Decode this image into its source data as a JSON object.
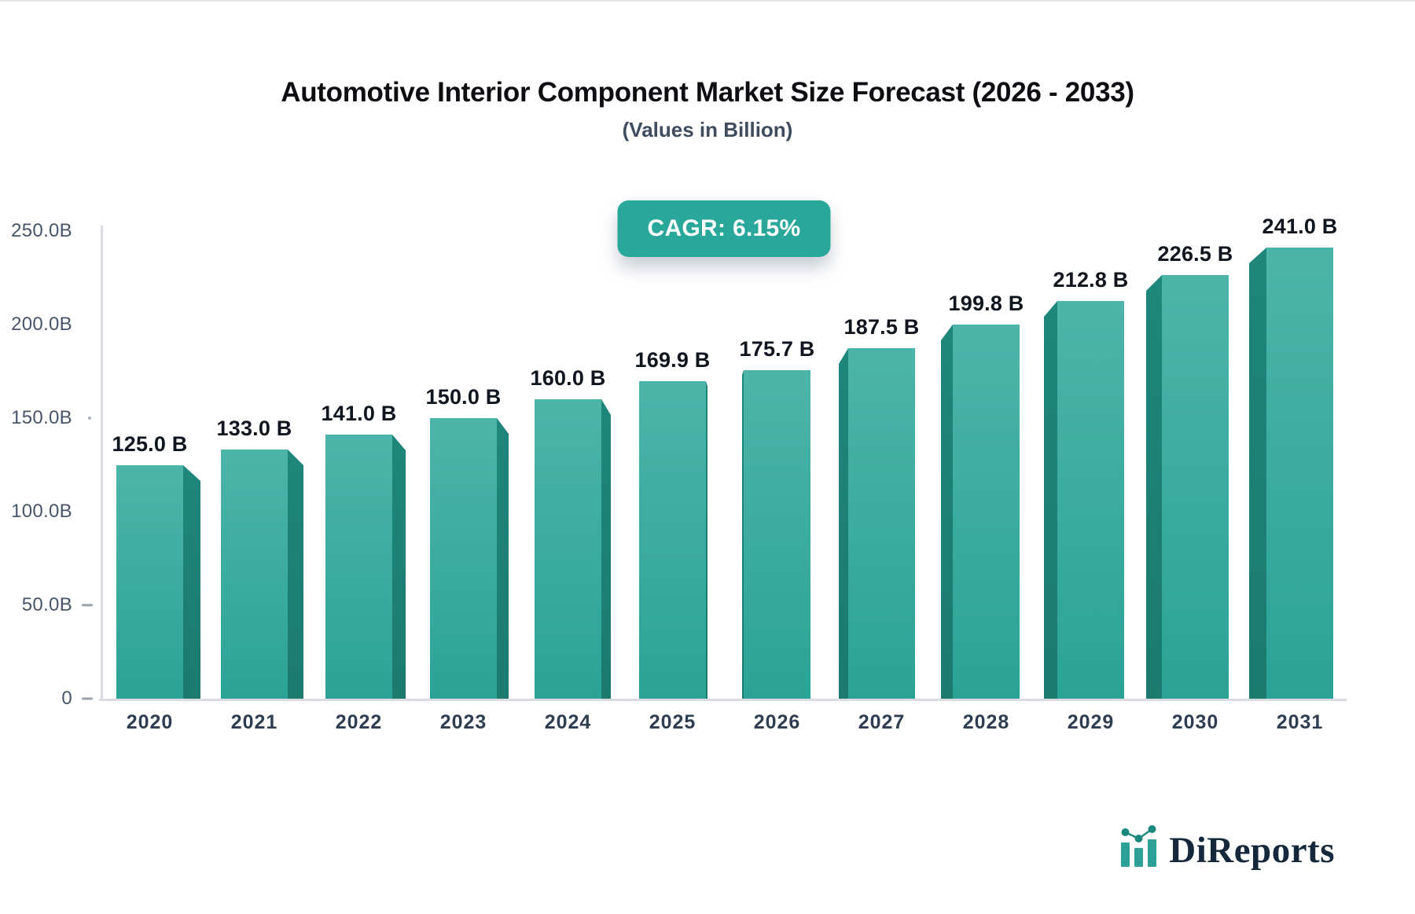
{
  "header": {
    "title": "Automotive Interior Component Market Size Forecast (2026 - 2033)",
    "subtitle": "(Values in Billion)"
  },
  "badge": {
    "label": "CAGR: 6.15%",
    "background": "#2aa79b",
    "text_color": "#ffffff"
  },
  "chart_data": {
    "type": "bar",
    "title": "Automotive Interior Component Market Size Forecast (2026 - 2033)",
    "subtitle": "(Values in Billion)",
    "cagr": "6.15%",
    "categories": [
      "2020",
      "2021",
      "2022",
      "2023",
      "2024",
      "2025",
      "2026",
      "2027",
      "2028",
      "2029",
      "2030",
      "2031"
    ],
    "values": [
      125.0,
      133.0,
      141.0,
      150.0,
      160.0,
      169.9,
      175.7,
      187.5,
      199.8,
      212.8,
      226.5,
      241.0
    ],
    "value_labels": [
      "125.0 B",
      "133.0 B",
      "141.0 B",
      "150.0 B",
      "160.0 B",
      "169.9 B",
      "175.7 B",
      "187.5 B",
      "199.8 B",
      "212.8 B",
      "226.5 B",
      "241.0 B"
    ],
    "y_ticks": [
      {
        "label": "250.0B",
        "value": 250,
        "mark": "none"
      },
      {
        "label": "200.0B",
        "value": 200,
        "mark": "none"
      },
      {
        "label": "150.0B",
        "value": 150,
        "mark": "dot"
      },
      {
        "label": "100.0B",
        "value": 100,
        "mark": "none"
      },
      {
        "label": "50.0B",
        "value": 50,
        "mark": "dash"
      },
      {
        "label": "0",
        "value": 0,
        "mark": "dash"
      }
    ],
    "ylim": [
      0,
      250
    ],
    "xlabel": "",
    "ylabel": "",
    "grid": false,
    "legend": false,
    "style_3d": true,
    "colors": {
      "bar_front_top": "#4db4a9",
      "bar_front_bottom": "#2aa396",
      "bar_side_top": "#1f867c",
      "bar_side_bottom": "#1c7a6f",
      "axis": "#d8dbdf",
      "tick_text": "#475569",
      "value_text": "#10161f",
      "year_text": "#2e3d50"
    }
  },
  "logo": {
    "text": "DiReports",
    "icon": "mini-bar-line-chart-icon",
    "accent": "#2da197",
    "dot_color": "#19877d",
    "text_color": "#16283c"
  }
}
